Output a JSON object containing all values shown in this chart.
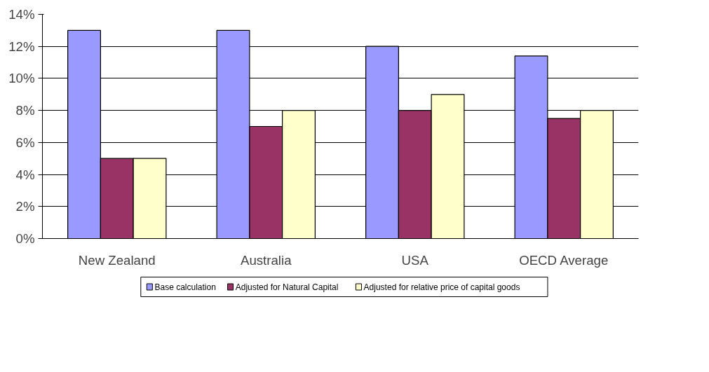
{
  "chart_data": {
    "type": "bar",
    "categories": [
      "New Zealand",
      "Australia",
      "USA",
      "OECD Average"
    ],
    "series": [
      {
        "name": "Base calculation",
        "color": "#9999ff",
        "values": [
          13,
          13,
          12,
          11.4
        ]
      },
      {
        "name": "Adjusted for Natural Capital",
        "color": "#993366",
        "values": [
          5,
          7,
          8,
          7.5
        ]
      },
      {
        "name": "Adjusted for relative price of capital goods",
        "color": "#ffffcc",
        "values": [
          5,
          8,
          9,
          8
        ]
      }
    ],
    "ylim": [
      0,
      14
    ],
    "yticks": [
      {
        "value": 0,
        "label": "0%"
      },
      {
        "value": 2,
        "label": "2%"
      },
      {
        "value": 4,
        "label": "4%"
      },
      {
        "value": 6,
        "label": "6%"
      },
      {
        "value": 8,
        "label": "8%"
      },
      {
        "value": 10,
        "label": "10%"
      },
      {
        "value": 12,
        "label": "12%"
      },
      {
        "value": 14,
        "label": "14%"
      }
    ],
    "grid": "y",
    "legend": "bottom"
  }
}
